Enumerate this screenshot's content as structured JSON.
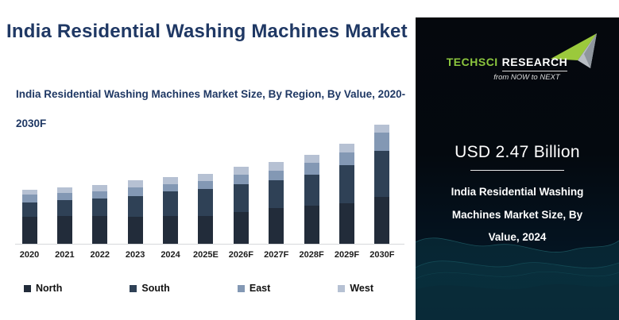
{
  "page": {
    "title": "India Residential Washing Machines Market",
    "subtitle_lines": [
      "India Residential Washing Machines Market Size, By Region, By Value, 2020-",
      "2030F"
    ]
  },
  "chart_data": {
    "type": "bar",
    "stacked": true,
    "title": "India Residential Washing Machines Market Size, By Region, By Value, 2020-2030F",
    "unit": "USD Billion",
    "categories": [
      "2020",
      "2021",
      "2022",
      "2023",
      "2024",
      "2025E",
      "2026F",
      "2027F",
      "2028F",
      "2029F",
      "2030F"
    ],
    "series": [
      {
        "name": "North",
        "color": "#222c3a",
        "values": [
          1.0,
          1.03,
          1.04,
          1.01,
          1.02,
          1.04,
          1.18,
          1.31,
          1.42,
          1.5,
          1.73
        ]
      },
      {
        "name": "South",
        "color": "#2f4156",
        "values": [
          0.54,
          0.59,
          0.64,
          0.76,
          0.92,
          1.01,
          1.03,
          1.04,
          1.15,
          1.42,
          1.71
        ]
      },
      {
        "name": "East",
        "color": "#8398b4",
        "values": [
          0.29,
          0.26,
          0.26,
          0.31,
          0.27,
          0.29,
          0.34,
          0.35,
          0.44,
          0.47,
          0.69
        ]
      },
      {
        "name": "West",
        "color": "#b6c1d3",
        "values": [
          0.17,
          0.22,
          0.24,
          0.26,
          0.26,
          0.27,
          0.3,
          0.32,
          0.28,
          0.31,
          0.29
        ]
      }
    ],
    "totals_estimated": [
      2.0,
      2.1,
      2.18,
      2.34,
      2.47,
      2.61,
      2.85,
      3.02,
      3.29,
      3.7,
      4.42
    ],
    "labeled_value": {
      "category": "2024",
      "total": "USD 2.47 Billion"
    },
    "y_axis_visible": false,
    "gridlines": false,
    "legend_position": "bottom",
    "stack_order_top_to_bottom": [
      "West",
      "East",
      "South",
      "North"
    ]
  },
  "side_panel": {
    "logo": {
      "brand_part1": "TechSci",
      "brand_part2": "Research",
      "tagline": "from NOW to NEXT",
      "brand_green": "#8cc63e"
    },
    "highlight_value": "USD 2.47 Billion",
    "caption_lines": [
      "India Residential Washing",
      "Machines Market Size, By",
      "Value, 2024"
    ]
  },
  "colors": {
    "title_text": "#1f3864",
    "axis_line": "#d6d8db",
    "x_label_text": "#1b1b1b",
    "panel_background": "#04090f",
    "panel_wave_teal": "#0e4b58",
    "logo_green": "#8cc63e",
    "white_text": "#ffffff"
  }
}
